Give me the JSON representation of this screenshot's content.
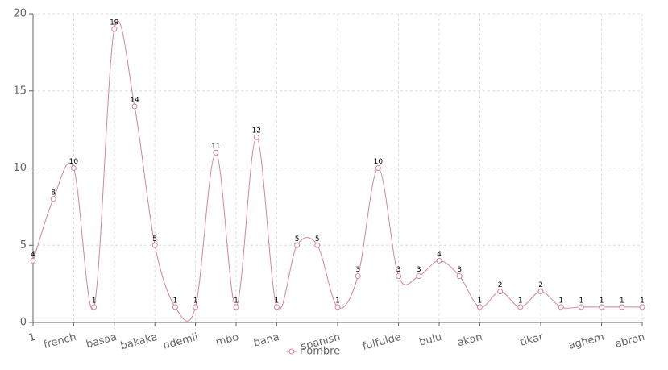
{
  "chart_data": {
    "type": "line",
    "categories": [
      "1",
      null,
      "french",
      null,
      "basaa",
      null,
      "bakaka",
      null,
      "ndemli",
      null,
      "mbo",
      null,
      "bana",
      null,
      null,
      "spanish",
      null,
      null,
      "fulfulde",
      null,
      "bulu",
      null,
      "akan",
      null,
      null,
      "tikar",
      null,
      null,
      "aghem",
      null,
      "abron"
    ],
    "series": [
      {
        "name": "nombre",
        "color": "#d4849c",
        "values": [
          4,
          8,
          10,
          1,
          19,
          14,
          5,
          1,
          1,
          11,
          1,
          12,
          1,
          5,
          5,
          1,
          3,
          10,
          3,
          3,
          4,
          3,
          1,
          2,
          1,
          2,
          1,
          1,
          1,
          1,
          1
        ]
      }
    ],
    "ylim": [
      0,
      20
    ],
    "yticks": [
      0,
      5,
      10,
      15,
      20
    ],
    "grid": true,
    "smooth": true,
    "legend": "bottom"
  }
}
